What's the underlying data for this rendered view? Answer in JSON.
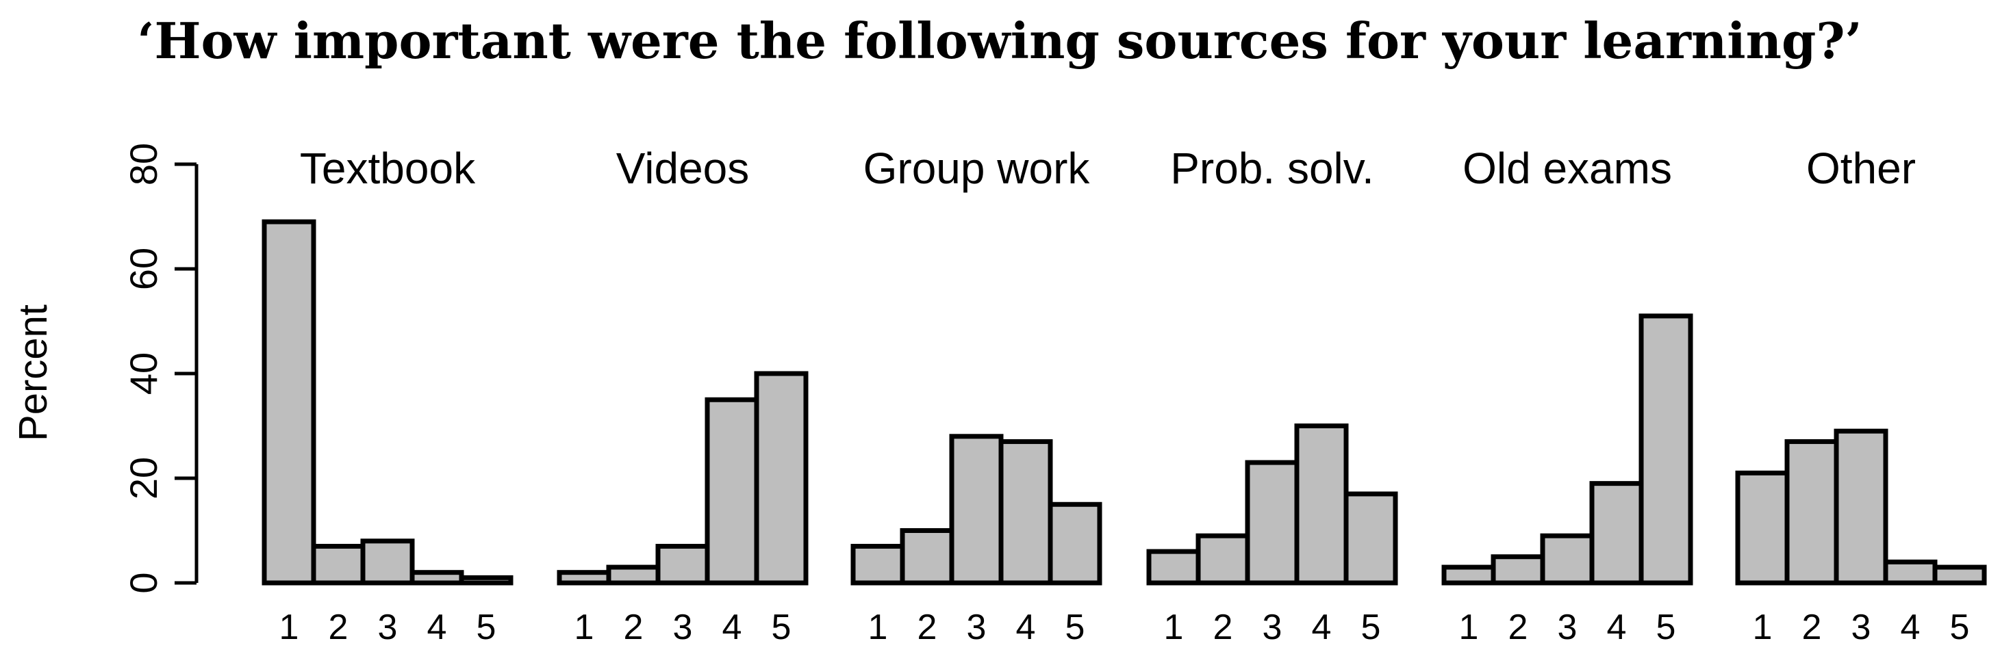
{
  "chart_data": {
    "type": "bar",
    "title": "‘How important were the following sources for your learning?’",
    "ylabel": "Percent",
    "ylim": [
      0,
      80
    ],
    "yticks": [
      0,
      20,
      40,
      60,
      80
    ],
    "categories": [
      "1",
      "2",
      "3",
      "4",
      "5"
    ],
    "bar_color": "#bebebe",
    "panels": [
      {
        "label": "Textbook",
        "values": [
          69,
          7,
          8,
          2,
          1
        ]
      },
      {
        "label": "Videos",
        "values": [
          2,
          3,
          7,
          35,
          40
        ]
      },
      {
        "label": "Group work",
        "values": [
          7,
          10,
          28,
          27,
          15
        ]
      },
      {
        "label": "Prob. solv.",
        "values": [
          6,
          9,
          23,
          30,
          17
        ]
      },
      {
        "label": "Old exams",
        "values": [
          3,
          5,
          9,
          19,
          51
        ]
      },
      {
        "label": "Other",
        "values": [
          21,
          27,
          29,
          4,
          3
        ]
      }
    ]
  }
}
